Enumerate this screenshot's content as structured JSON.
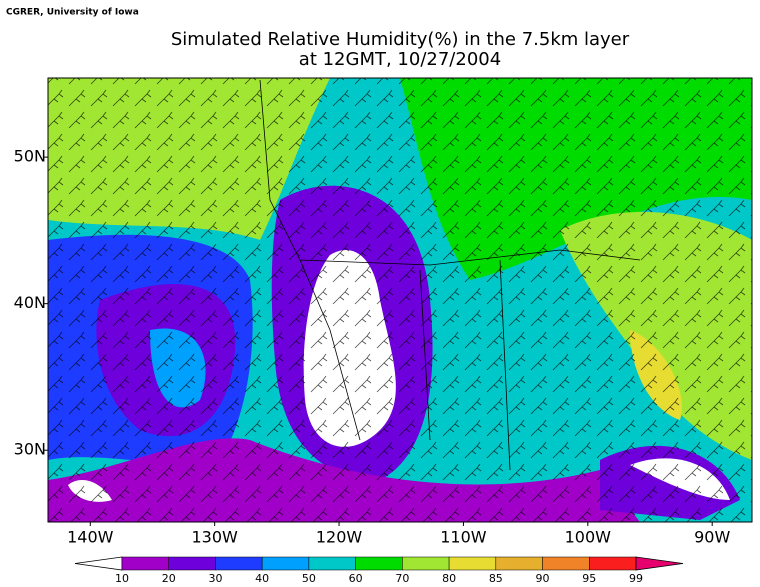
{
  "chart_data": {
    "type": "map",
    "credit": "CGRER, University of Iowa",
    "title": "Simulated Relative Humidity(%) in the 7.5km layer",
    "subtitle": "at 12GMT, 10/27/2004",
    "xlim": [
      -143.4,
      -86.8
    ],
    "ylim": [
      25.1,
      55.4
    ],
    "xticks": [
      {
        "value": -140,
        "label": "140W"
      },
      {
        "value": -130,
        "label": "130W"
      },
      {
        "value": -120,
        "label": "120W"
      },
      {
        "value": -110,
        "label": "110W"
      },
      {
        "value": -100,
        "label": "100W"
      },
      {
        "value": -90,
        "label": "90W"
      }
    ],
    "yticks": [
      {
        "value": 30,
        "label": "30N"
      },
      {
        "value": 40,
        "label": "40N"
      },
      {
        "value": 50,
        "label": "50N"
      }
    ],
    "colorbar": {
      "levels": [
        10,
        20,
        30,
        40,
        50,
        60,
        70,
        80,
        85,
        90,
        95,
        99
      ],
      "colors": [
        "#a000c8",
        "#6e00dc",
        "#1e3cff",
        "#00a0ff",
        "#00c8c8",
        "#00dc00",
        "#a0e632",
        "#e6dc32",
        "#e6af2d",
        "#f08228",
        "#fa1e1e"
      ],
      "under_color": "#ffffff",
      "over_color": "#e6006e"
    }
  }
}
